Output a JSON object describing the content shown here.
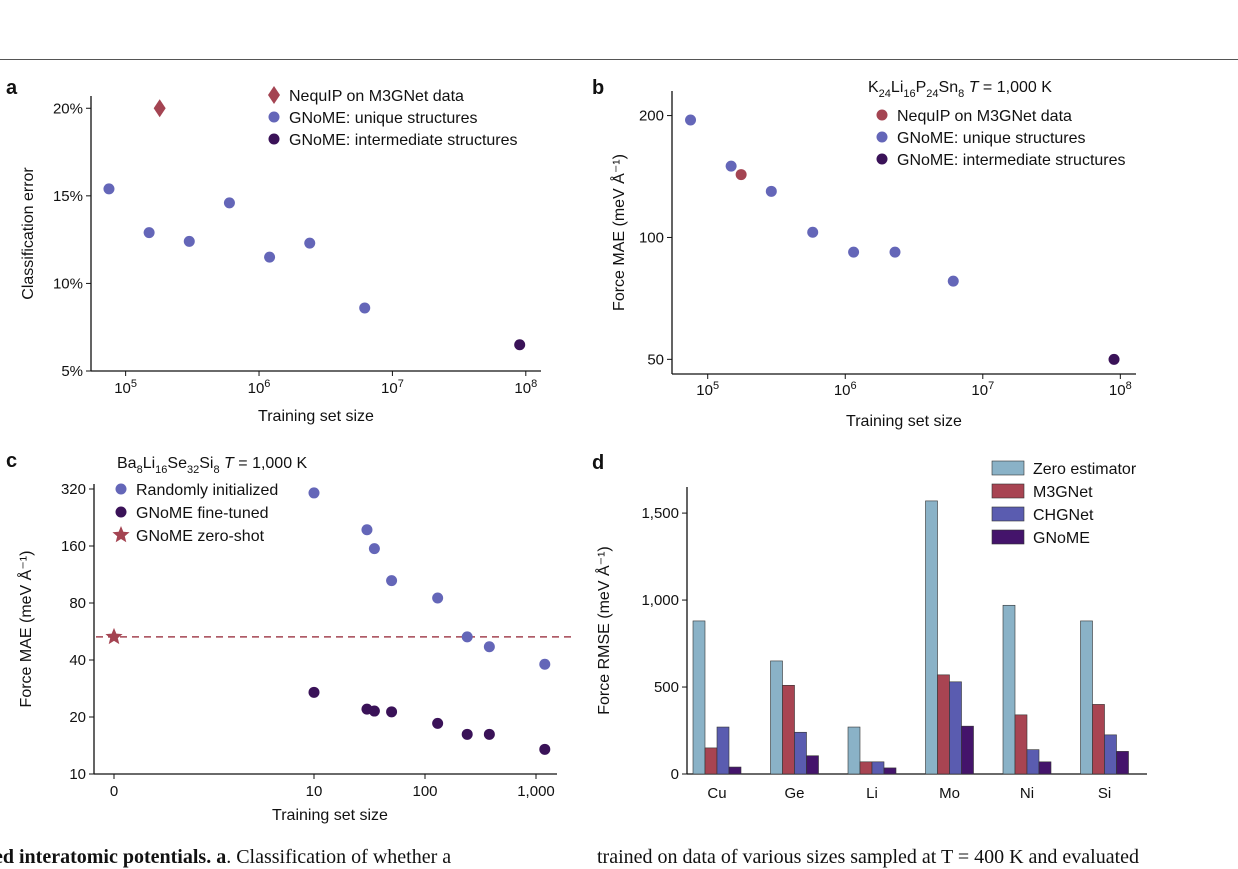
{
  "captions": {
    "left_bold": "ed interatomic potentials. a",
    "left_rest": ". Classification of whether a",
    "right": "trained on data of various sizes sampled at T = 400 K and evaluated"
  },
  "colors": {
    "nequip": "#a44452",
    "unique": "#6466b8",
    "intermediate": "#3a1258",
    "zero": "#8ab2c7",
    "m3gnet": "#a84452",
    "chgnet": "#5a5cb0",
    "gnome": "#44146b",
    "dashed": "#a44452"
  },
  "chart_data": [
    {
      "panel": "a",
      "type": "scatter",
      "xscale": "log",
      "xlabel": "Training set size",
      "ylabel": "Classification error",
      "xlim": [
        55000,
        130000000
      ],
      "ylim": [
        5,
        20.7
      ],
      "xticks": [
        {
          "v": 100000,
          "base": "10",
          "exp": "5"
        },
        {
          "v": 1000000,
          "base": "10",
          "exp": "6"
        },
        {
          "v": 10000000,
          "base": "10",
          "exp": "7"
        },
        {
          "v": 100000000,
          "base": "10",
          "exp": "8"
        }
      ],
      "yticks": [
        {
          "v": 5,
          "label": "5%"
        },
        {
          "v": 10,
          "label": "10%"
        },
        {
          "v": 15,
          "label": "15%"
        },
        {
          "v": 20,
          "label": "20%"
        }
      ],
      "series": [
        {
          "name": "NequIP on M3GNet data",
          "marker": "diamond",
          "color_key": "nequip",
          "points": [
            [
              180000,
              20.0
            ]
          ]
        },
        {
          "name": "GNoME: unique structures",
          "marker": "circle",
          "color_key": "unique",
          "points": [
            [
              75000,
              15.4
            ],
            [
              150000,
              12.9
            ],
            [
              300000,
              12.4
            ],
            [
              600000,
              14.6
            ],
            [
              1200000,
              11.5
            ],
            [
              2400000,
              12.3
            ],
            [
              6200000,
              8.6
            ]
          ]
        },
        {
          "name": "GNoME: intermediate structures",
          "marker": "circle",
          "color_key": "intermediate",
          "points": [
            [
              90000000,
              6.5
            ]
          ]
        }
      ]
    },
    {
      "panel": "b",
      "type": "scatter",
      "xscale": "log",
      "yscale": "log",
      "title_parts": [
        {
          "t": "K",
          "sub": false
        },
        {
          "t": "24",
          "sub": true
        },
        {
          "t": "Li",
          "sub": false
        },
        {
          "t": "16",
          "sub": true
        },
        {
          "t": "P",
          "sub": false
        },
        {
          "t": "24",
          "sub": true
        },
        {
          "t": "Sn",
          "sub": false
        },
        {
          "t": "8",
          "sub": true
        },
        {
          "t": " ",
          "sub": false
        },
        {
          "t": "T",
          "sub": false,
          "italic": true
        },
        {
          "t": " = 1,000 K",
          "sub": false
        }
      ],
      "xlabel": "Training set size",
      "ylabel": "Force MAE (meV Å⁻¹)",
      "xlim": [
        55000,
        130000000
      ],
      "ylim": [
        46,
        230
      ],
      "xticks": [
        {
          "v": 100000,
          "base": "10",
          "exp": "5"
        },
        {
          "v": 1000000,
          "base": "10",
          "exp": "6"
        },
        {
          "v": 10000000,
          "base": "10",
          "exp": "7"
        },
        {
          "v": 100000000,
          "base": "10",
          "exp": "8"
        }
      ],
      "yticks": [
        {
          "v": 50,
          "label": "50"
        },
        {
          "v": 100,
          "label": "100"
        },
        {
          "v": 200,
          "label": "200"
        }
      ],
      "series": [
        {
          "name": "NequIP on M3GNet data",
          "marker": "circle",
          "color_key": "nequip",
          "points": [
            [
              175000,
              143
            ]
          ]
        },
        {
          "name": "GNoME: unique structures",
          "marker": "circle",
          "color_key": "unique",
          "points": [
            [
              75000,
              195
            ],
            [
              148000,
              150
            ],
            [
              290000,
              130
            ],
            [
              580000,
              103
            ],
            [
              1150000,
              92
            ],
            [
              2300000,
              92
            ],
            [
              6100000,
              78
            ]
          ]
        },
        {
          "name": "GNoME: intermediate structures",
          "marker": "circle",
          "color_key": "intermediate",
          "points": [
            [
              90000000,
              50
            ]
          ]
        }
      ]
    },
    {
      "panel": "c",
      "type": "scatter",
      "xscale": "symlog",
      "yscale": "log2",
      "title_parts": [
        {
          "t": "Ba",
          "sub": false
        },
        {
          "t": "8",
          "sub": true
        },
        {
          "t": "Li",
          "sub": false
        },
        {
          "t": "16",
          "sub": true
        },
        {
          "t": "Se",
          "sub": false
        },
        {
          "t": "32",
          "sub": true
        },
        {
          "t": "Si",
          "sub": false
        },
        {
          "t": "8",
          "sub": true
        },
        {
          "t": " ",
          "sub": false
        },
        {
          "t": "T",
          "sub": false,
          "italic": true
        },
        {
          "t": " = 1,000 K",
          "sub": false
        }
      ],
      "xlabel": "Training set size",
      "ylabel": "Force MAE (meV Å⁻¹)",
      "ylim": [
        10,
        340
      ],
      "xticks": [
        {
          "v": 0,
          "label": "0"
        },
        {
          "v": 10,
          "label": "10"
        },
        {
          "v": 100,
          "label": "100"
        },
        {
          "v": 1000,
          "label": "1,000"
        }
      ],
      "yticks": [
        {
          "v": 10,
          "label": "10"
        },
        {
          "v": 20,
          "label": "20"
        },
        {
          "v": 40,
          "label": "40"
        },
        {
          "v": 80,
          "label": "80"
        },
        {
          "v": 160,
          "label": "160"
        },
        {
          "v": 320,
          "label": "320"
        }
      ],
      "reference_line": {
        "series": "GNoME zero-shot",
        "y": 53
      },
      "series": [
        {
          "name": "Randomly initialized",
          "marker": "circle",
          "color_key": "unique",
          "points": [
            [
              10,
              305
            ],
            [
              30,
              195
            ],
            [
              35,
              155
            ],
            [
              50,
              105
            ],
            [
              130,
              85
            ],
            [
              240,
              53
            ],
            [
              380,
              47
            ],
            [
              1200,
              38
            ]
          ]
        },
        {
          "name": "GNoME fine-tuned",
          "marker": "circle",
          "color_key": "intermediate",
          "points": [
            [
              10,
              27
            ],
            [
              30,
              22
            ],
            [
              35,
              21.5
            ],
            [
              50,
              21.3
            ],
            [
              130,
              18.5
            ],
            [
              240,
              16.2
            ],
            [
              380,
              16.2
            ],
            [
              1200,
              13.5
            ]
          ]
        },
        {
          "name": "GNoME zero-shot",
          "marker": "star",
          "color_key": "nequip",
          "points": [
            [
              0,
              53
            ]
          ]
        }
      ]
    },
    {
      "panel": "d",
      "type": "bar",
      "ylabel": "Force RMSE (meV Å⁻¹)",
      "ylim": [
        0,
        1650
      ],
      "yticks": [
        {
          "v": 0,
          "label": "0"
        },
        {
          "v": 500,
          "label": "500"
        },
        {
          "v": 1000,
          "label": "1,000"
        },
        {
          "v": 1500,
          "label": "1,500"
        }
      ],
      "categories": [
        "Cu",
        "Ge",
        "Li",
        "Mo",
        "Ni",
        "Si"
      ],
      "series": [
        {
          "name": "Zero estimator",
          "color_key": "zero",
          "values": [
            880,
            650,
            270,
            1570,
            970,
            880
          ]
        },
        {
          "name": "M3GNet",
          "color_key": "m3gnet",
          "values": [
            150,
            510,
            70,
            570,
            340,
            400
          ]
        },
        {
          "name": "CHGNet",
          "color_key": "chgnet",
          "values": [
            270,
            240,
            70,
            530,
            140,
            225
          ]
        },
        {
          "name": "GNoME",
          "color_key": "gnome",
          "values": [
            40,
            105,
            35,
            275,
            70,
            130
          ]
        }
      ]
    }
  ]
}
